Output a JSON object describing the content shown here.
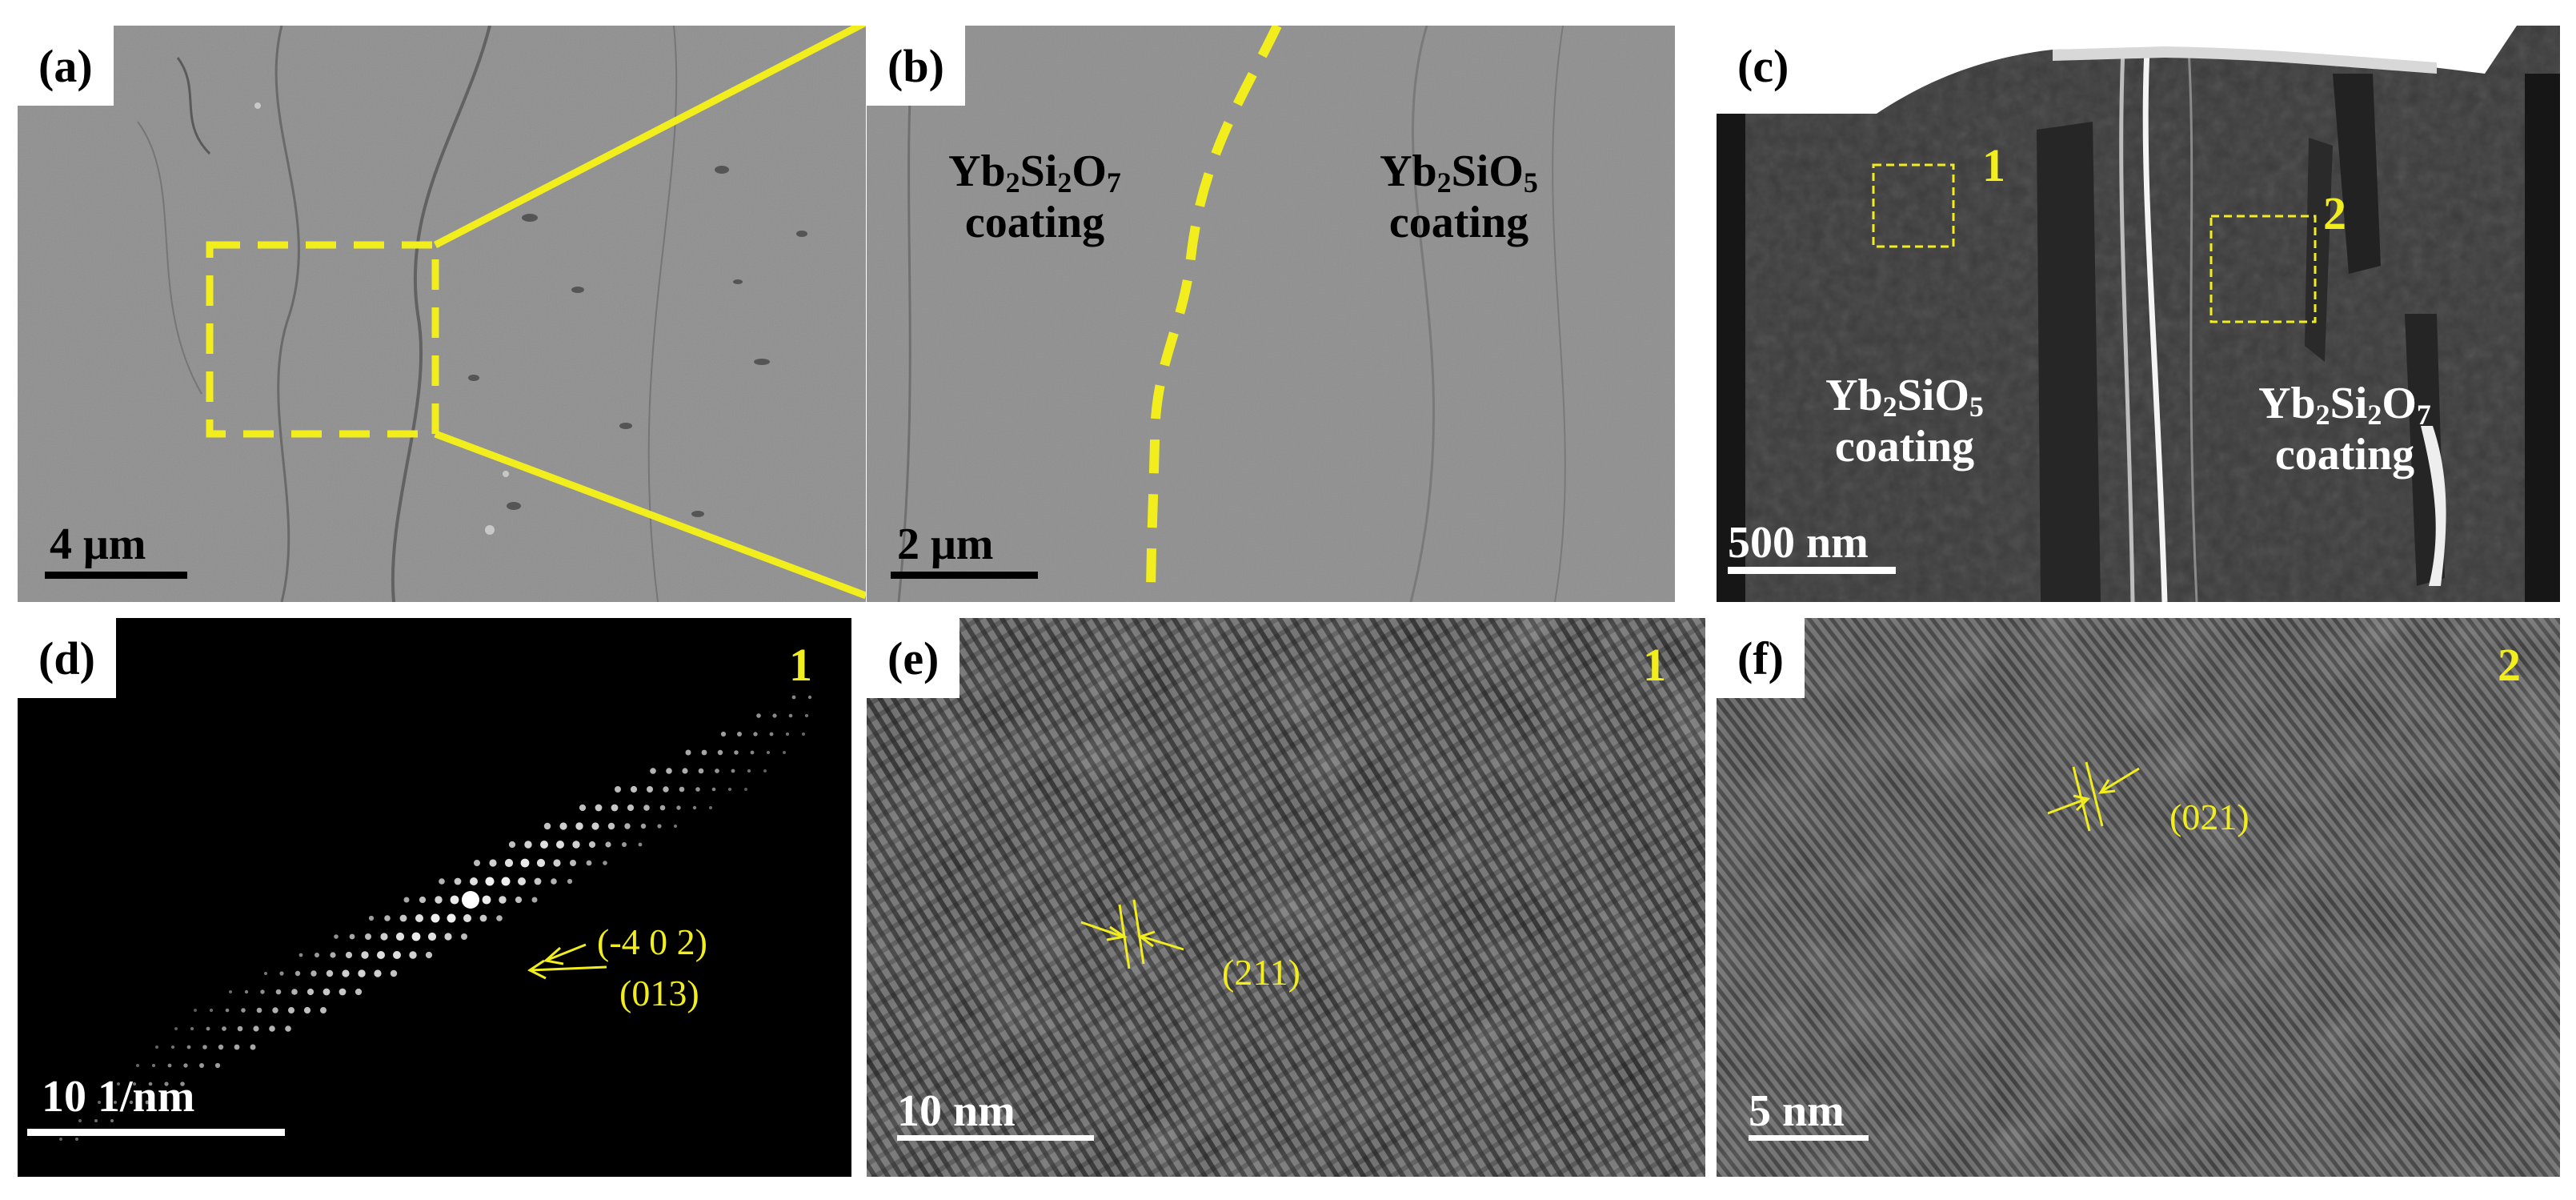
{
  "colors": {
    "annotation": "#f2ee1e",
    "sem_background": "#8c8c8c",
    "tem_background": "#1f1f1f"
  },
  "panels": {
    "a": {
      "tag": "(a)",
      "scale": "4 μm"
    },
    "b": {
      "tag": "(b)",
      "scale": "2 μm",
      "left_formula": {
        "base": "Yb",
        "n1": "2",
        "mid": "Si",
        "n2": "2",
        "end": "O",
        "n3": "7"
      },
      "left_word": "coating",
      "right_formula": {
        "base": "Yb",
        "n1": "2",
        "mid": "SiO",
        "n3": "5"
      },
      "right_word": "coating"
    },
    "c": {
      "tag": "(c)",
      "scale": "500 nm",
      "region_1": "1",
      "region_2": "2",
      "left_formula": {
        "base": "Yb",
        "n1": "2",
        "mid": "SiO",
        "n3": "5"
      },
      "left_word": "coating",
      "right_formula": {
        "base": "Yb",
        "n1": "2",
        "mid": "Si",
        "n2": "2",
        "end": "O",
        "n3": "7"
      },
      "right_word": "coating"
    },
    "d": {
      "tag": "(d)",
      "scale": "10 1/nm",
      "region": "1",
      "annotation_1": "(-4 0 2)",
      "annotation_2": "(013)"
    },
    "e": {
      "tag": "(e)",
      "scale": "10 nm",
      "region": "1",
      "annotation": "(211)"
    },
    "f": {
      "tag": "(f)",
      "scale": "5 nm",
      "region": "2",
      "annotation": "(021)"
    }
  }
}
